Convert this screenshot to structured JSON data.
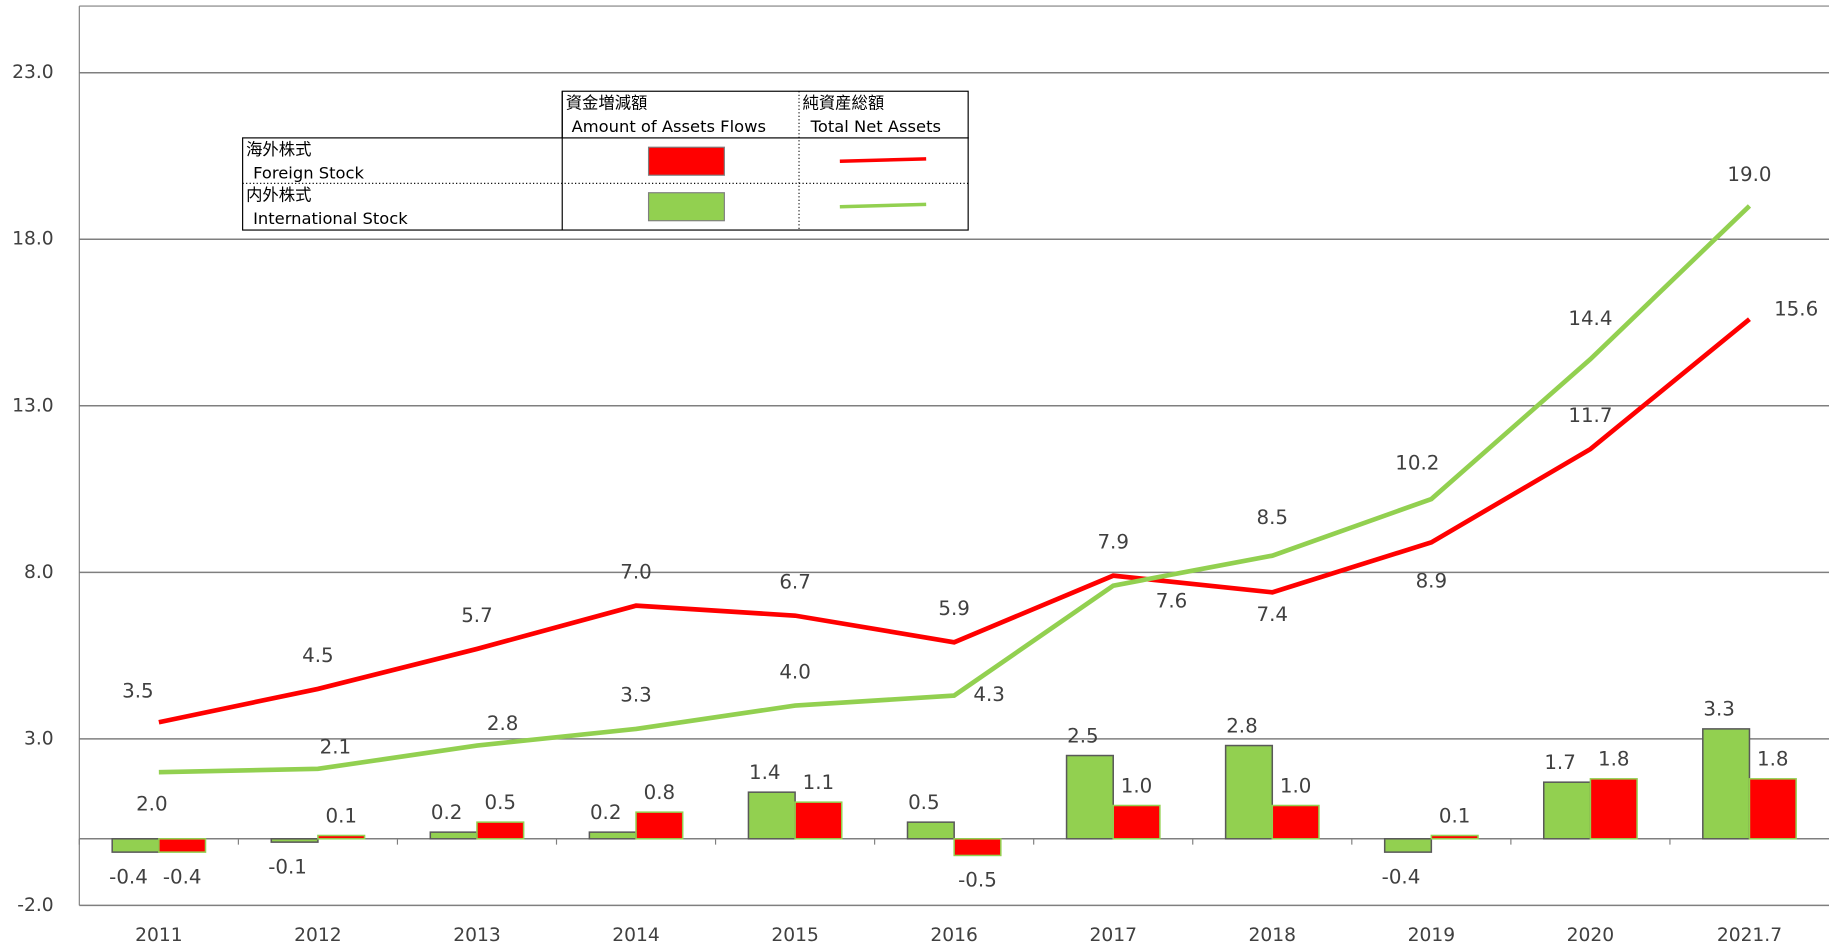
{
  "chart_data": {
    "type": "bar-line",
    "categories": [
      "2011",
      "2012",
      "2013",
      "2014",
      "2015",
      "2016",
      "2017",
      "2018",
      "2019",
      "2020",
      "2021.7"
    ],
    "ylim": [
      -2,
      25
    ],
    "yticks": [
      {
        "value": -2,
        "label": "-2.0"
      },
      {
        "value": 3,
        "label": "3.0"
      },
      {
        "value": 8,
        "label": "8.0"
      },
      {
        "value": 13,
        "label": "13.0"
      },
      {
        "value": 18,
        "label": "18.0"
      },
      {
        "value": 23,
        "label": "23.0"
      }
    ],
    "grid": true,
    "legend": {
      "columns": [
        {
          "jp": "資金増減額",
          "en": "Amount of Assets Flows"
        },
        {
          "jp": "純資産総額",
          "en": "Total Net Assets"
        }
      ]
    },
    "series": [
      {
        "name": "Foreign Stock",
        "name_jp": "海外株式",
        "color": "#ff0000",
        "flows": [
          -0.4,
          0.1,
          0.5,
          0.8,
          1.1,
          -0.5,
          1.0,
          1.0,
          0.1,
          1.8,
          1.8
        ],
        "flows_labels": [
          "-0.4",
          "0.1",
          "0.5",
          "0.8",
          "1.1",
          "-0.5",
          "1.0",
          "1.0",
          "0.1",
          "1.8",
          "1.8"
        ],
        "values": [
          3.5,
          4.5,
          5.7,
          7.0,
          6.7,
          5.9,
          7.9,
          7.4,
          8.9,
          11.7,
          15.6
        ],
        "value_labels": [
          "3.5",
          "4.5",
          "5.7",
          "7.0",
          "6.7",
          "5.9",
          "7.9",
          "7.4",
          "8.9",
          "11.7",
          "15.6"
        ]
      },
      {
        "name": "International Stock",
        "name_jp": "内外株式",
        "color": "#92d050",
        "flows": [
          -0.4,
          -0.1,
          0.2,
          0.2,
          1.4,
          0.5,
          2.5,
          2.8,
          -0.4,
          1.7,
          3.3
        ],
        "flows_labels": [
          "-0.4",
          "-0.1",
          "0.2",
          "0.2",
          "1.4",
          "0.5",
          "2.5",
          "2.8",
          "-0.4",
          "1.7",
          "3.3"
        ],
        "values": [
          2.0,
          2.1,
          2.8,
          3.3,
          4.0,
          4.3,
          7.6,
          8.5,
          10.2,
          14.4,
          19.0
        ],
        "value_labels": [
          "2.0",
          "2.1",
          "2.8",
          "3.3",
          "4.0",
          "4.3",
          "7.6",
          "8.5",
          "10.2",
          "14.4",
          "19.0"
        ]
      }
    ]
  }
}
